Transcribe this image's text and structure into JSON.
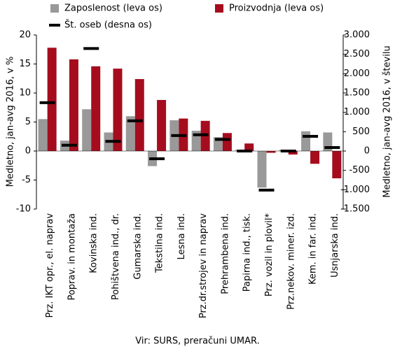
{
  "chart_data": {
    "type": "bar",
    "categories": [
      "Prz. IKT opr., el. naprav",
      "Poprav. in montaža",
      "Kovinska ind.",
      "Pohištvena ind., dr.",
      "Gumarska ind.",
      "Tekstilna ind.",
      "Lesna ind.",
      "Prz.dr.strojev in naprav",
      "Prehrambena ind.",
      "Papirna ind., tisk.",
      "Prz. vozil in plovil*",
      "Prz.nekov. miner. izd.",
      "Kem. in far. ind.",
      "Usnjarska ind."
    ],
    "series": [
      {
        "name": "Zaposlenost (leva os)",
        "color": "#999999",
        "values": [
          5.5,
          1.8,
          7.2,
          3.2,
          6.0,
          -2.6,
          5.3,
          3.5,
          2.4,
          0.2,
          -6.3,
          0.2,
          3.4,
          3.2
        ]
      },
      {
        "name": "Proizvodnja (leva os)",
        "color": "#a50d1e",
        "values": [
          17.8,
          15.8,
          14.6,
          14.2,
          12.4,
          8.8,
          5.6,
          5.2,
          3.1,
          1.3,
          -0.3,
          -0.6,
          -2.2,
          -4.7
        ]
      },
      {
        "name": "Št. oseb (desna os)",
        "color": "#000000",
        "axis": "y2",
        "values": [
          1250,
          150,
          2650,
          250,
          780,
          -200,
          400,
          420,
          300,
          0,
          -1010,
          0,
          380,
          90
        ]
      }
    ],
    "ylabel": "Medletno, jan-avg 2016, v %",
    "y2label": "Medletno, jan-avg 2016, v številu",
    "ylim": [
      -10,
      20
    ],
    "yticks": [
      -10,
      -5,
      0,
      5,
      10,
      15,
      20
    ],
    "y2lim": [
      -1500,
      3000
    ],
    "y2ticks": [
      {
        "value": -1500,
        "label": "-1.500"
      },
      {
        "value": -1000,
        "label": "-1.000"
      },
      -500,
      0,
      500,
      {
        "value": 1000,
        "label": "1.000"
      },
      {
        "value": 1500,
        "label": "1.500"
      },
      {
        "value": 2000,
        "label": "2.000"
      },
      {
        "value": 2500,
        "label": "2.500"
      },
      {
        "value": 3000,
        "label": "3.000"
      }
    ],
    "source": "Vir: SURS, preračuni UMAR."
  }
}
